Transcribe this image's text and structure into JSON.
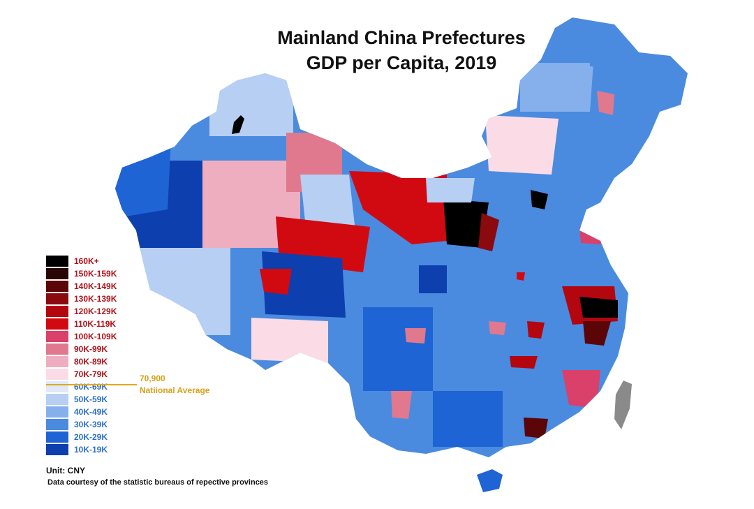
{
  "title": {
    "line1": "Mainland China Prefectures",
    "line2": "GDP per Capita, 2019"
  },
  "legend": {
    "items": [
      {
        "label": "160K+",
        "color": "#000000",
        "text_color": "#b01018"
      },
      {
        "label": "150K-159K",
        "color": "#2a0505",
        "text_color": "#b01018"
      },
      {
        "label": "140K-149K",
        "color": "#5c0508",
        "text_color": "#b01018"
      },
      {
        "label": "130K-139K",
        "color": "#8a0a10",
        "text_color": "#b01018"
      },
      {
        "label": "120K-129K",
        "color": "#b3060f",
        "text_color": "#b01018"
      },
      {
        "label": "110K-119K",
        "color": "#d10a12",
        "text_color": "#b01018"
      },
      {
        "label": "100K-109K",
        "color": "#d9406a",
        "text_color": "#b01018"
      },
      {
        "label": "90K-99K",
        "color": "#e0798e",
        "text_color": "#b01018"
      },
      {
        "label": "80K-89K",
        "color": "#efaec0",
        "text_color": "#b01018"
      },
      {
        "label": "70K-79K",
        "color": "#fbdce6",
        "text_color": "#b01018"
      },
      {
        "label": "60K-69K",
        "color": "#dfe9fa",
        "text_color": "#2b6fcf"
      },
      {
        "label": "50K-59K",
        "color": "#b7cff3",
        "text_color": "#2b6fcf"
      },
      {
        "label": "40K-49K",
        "color": "#86b0ec",
        "text_color": "#2b6fcf"
      },
      {
        "label": "30K-39K",
        "color": "#4a8be0",
        "text_color": "#2b6fcf"
      },
      {
        "label": "20K-29K",
        "color": "#1f64d4",
        "text_color": "#2b6fcf"
      },
      {
        "label": "10K-19K",
        "color": "#0d3fae",
        "text_color": "#2b6fcf"
      }
    ]
  },
  "average": {
    "value": "70,900",
    "label": "Natiional Average",
    "color": "#e1a81e"
  },
  "unit": "Unit: CNY",
  "source": "Data courtesy of the statistic bureaus of repective provinces",
  "colors": {
    "taiwan": "#8a8a8a",
    "borders": "#ffffff"
  }
}
